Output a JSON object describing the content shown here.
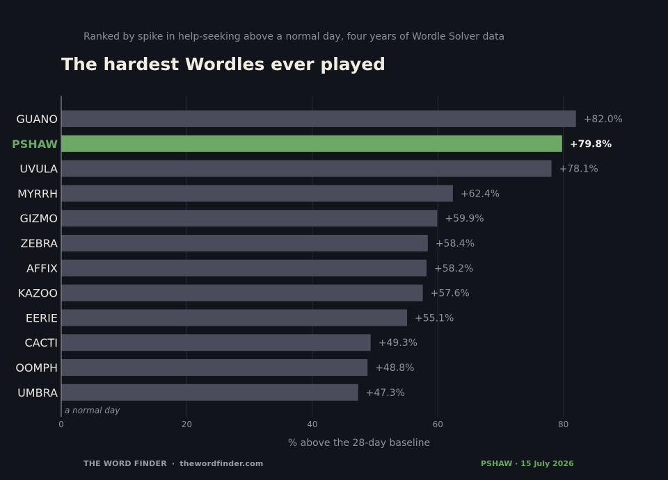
{
  "header": {
    "subtitle": "Ranked by spike in help-seeking above a normal day, four years of Wordle Solver data",
    "title": "The hardest Wordles ever played"
  },
  "footer": {
    "brand": "THE WORD FINDER",
    "separator": "·",
    "site": "thewordfinder.com",
    "highlight": "PSHAW · 15 July 2026"
  },
  "colors": {
    "background": "#12141b",
    "bar": "#4a4b5b",
    "highlight_bar": "#6ea866",
    "highlight_text": "#6aa866",
    "label": "#e8e6df",
    "value_label": "#8f919b",
    "gridline": "#272a33"
  },
  "chart_data": {
    "type": "bar",
    "orientation": "horizontal",
    "categories": [
      "GUANO",
      "PSHAW",
      "UVULA",
      "MYRRH",
      "GIZMO",
      "ZEBRA",
      "AFFIX",
      "KAZOO",
      "EERIE",
      "CACTI",
      "OOMPH",
      "UMBRA"
    ],
    "values": [
      82.0,
      79.8,
      78.1,
      62.4,
      59.9,
      58.4,
      58.2,
      57.6,
      55.1,
      49.3,
      48.8,
      47.3
    ],
    "value_labels": [
      "+82.0%",
      "+79.8%",
      "+78.1%",
      "+62.4%",
      "+59.9%",
      "+58.4%",
      "+58.2%",
      "+57.6%",
      "+55.1%",
      "+49.3%",
      "+48.8%",
      "+47.3%"
    ],
    "highlight": "PSHAW",
    "xlabel": "% above the 28-day baseline",
    "xticks": [
      0,
      20,
      40,
      60,
      80
    ],
    "xtick_labels": [
      "0",
      "20",
      "40",
      "60",
      "80"
    ],
    "xlim": [
      0,
      96
    ],
    "baseline_label": "a normal day",
    "grid": "vertical"
  }
}
